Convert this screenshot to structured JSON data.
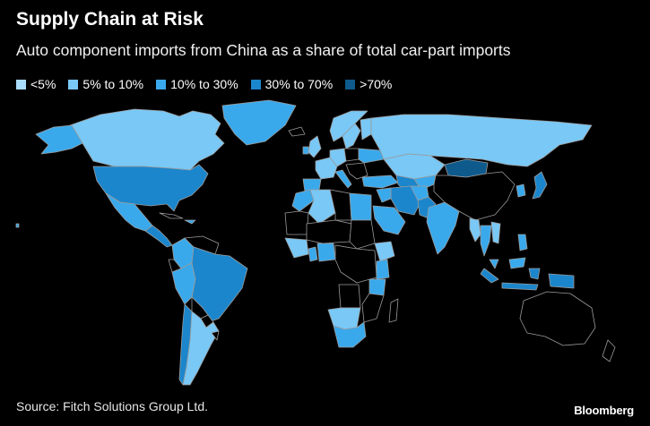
{
  "title": "Supply Chain at Risk",
  "subtitle": "Auto component imports from China as a share of total car-part imports",
  "legend": [
    {
      "label": "<5%",
      "color": "#aadcfb"
    },
    {
      "label": "5% to 10%",
      "color": "#79c8f6"
    },
    {
      "label": "10% to 30%",
      "color": "#3aa9ec"
    },
    {
      "label": "30% to 70%",
      "color": "#1c86cc"
    },
    {
      "label": ">70%",
      "color": "#0e5a8c"
    }
  ],
  "no_data_color": "#000000",
  "border_color": "#9a9a9a",
  "source": "Source: Fitch Solutions Group Ltd.",
  "brand": "Bloomberg"
}
